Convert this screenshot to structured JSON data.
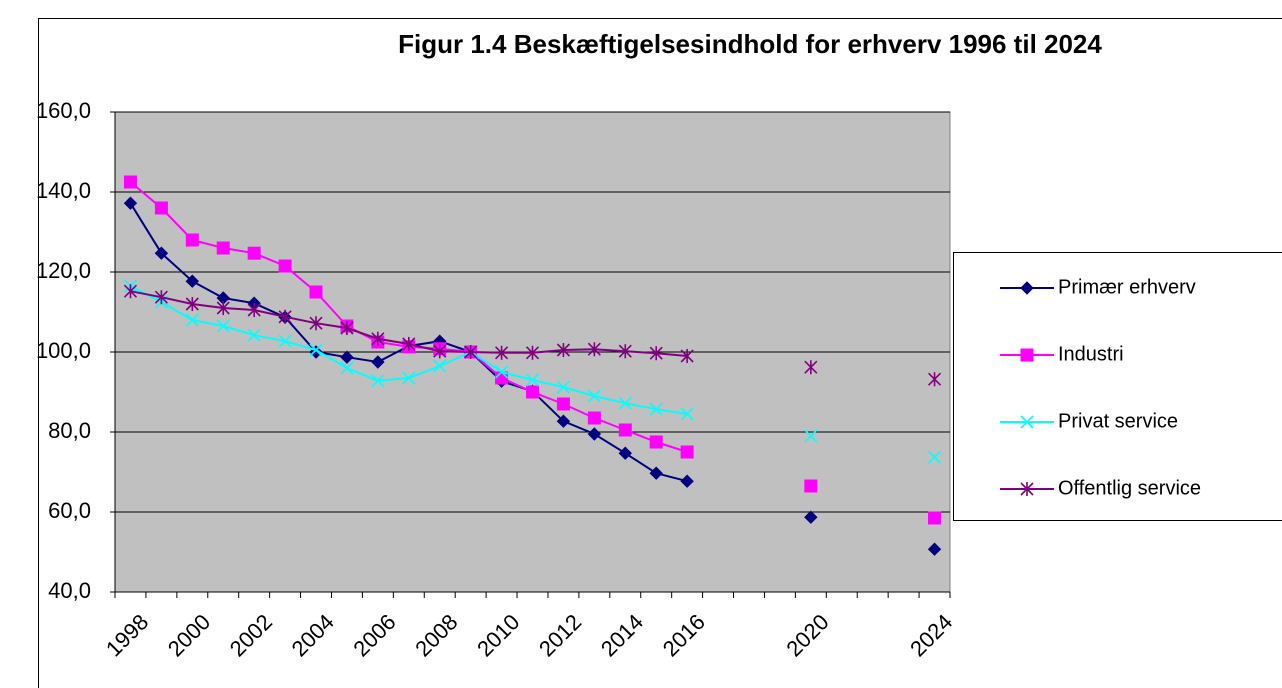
{
  "chart_data": {
    "type": "line",
    "title": "Figur 1.4 Beskæftigelsesindhold for erhverv 1996 til 2024",
    "categories": [
      "1998",
      null,
      "2000",
      null,
      "2002",
      null,
      "2004",
      null,
      "2006",
      null,
      "2008",
      null,
      "2010",
      null,
      "2012",
      null,
      "2014",
      null,
      "2016",
      null,
      null,
      null,
      "2020",
      null,
      null,
      null,
      "2024"
    ],
    "series": [
      {
        "name": "Primær erhverv",
        "color": "#000080",
        "marker": "diamond",
        "values": [
          137.2,
          124.7,
          117.7,
          113.5,
          112.2,
          108.7,
          100,
          98.7,
          97.5,
          101.5,
          102.7,
          100,
          92.7,
          90.2,
          82.7,
          79.5,
          74.7,
          69.7,
          67.7,
          null,
          null,
          null,
          58.7,
          null,
          null,
          null,
          50.7
        ]
      },
      {
        "name": "Industri",
        "color": "#FF00FF",
        "marker": "square",
        "values": [
          142.5,
          136,
          128,
          126,
          124.7,
          121.5,
          115,
          106.5,
          102.5,
          101.3,
          100.8,
          100,
          93.5,
          90,
          87,
          83.5,
          80.5,
          77.5,
          75,
          null,
          null,
          null,
          66.5,
          null,
          null,
          null,
          58.5
        ]
      },
      {
        "name": "Privat service",
        "color": "#00FFFF",
        "marker": "x",
        "values": [
          116.5,
          112.5,
          108,
          106.5,
          104.2,
          102.7,
          100.5,
          96,
          92.8,
          93.5,
          96.5,
          100,
          95,
          93,
          91.2,
          89,
          87.2,
          85.7,
          84.5,
          null,
          null,
          null,
          79,
          null,
          null,
          null,
          73.7
        ]
      },
      {
        "name": "Offentlig service",
        "color": "#800080",
        "marker": "star",
        "values": [
          115.2,
          113.7,
          112,
          111,
          110.5,
          108.8,
          107.2,
          106,
          103.3,
          102,
          100.2,
          100,
          99.8,
          99.8,
          100.5,
          100.7,
          100.2,
          99.7,
          99,
          null,
          null,
          null,
          96.2,
          null,
          null,
          null,
          93.2
        ]
      }
    ],
    "ylim": [
      40,
      160
    ],
    "yticks": [
      {
        "value": 40,
        "label": "40,0"
      },
      {
        "value": 60,
        "label": "60,0"
      },
      {
        "value": 80,
        "label": "80,0"
      },
      {
        "value": 100,
        "label": "100,0"
      },
      {
        "value": 120,
        "label": "120,0"
      },
      {
        "value": 140,
        "label": "140,0"
      },
      {
        "value": 160,
        "label": "160,0"
      }
    ],
    "grid": true,
    "legend": "right",
    "plot_background": "#C0C0C0"
  }
}
